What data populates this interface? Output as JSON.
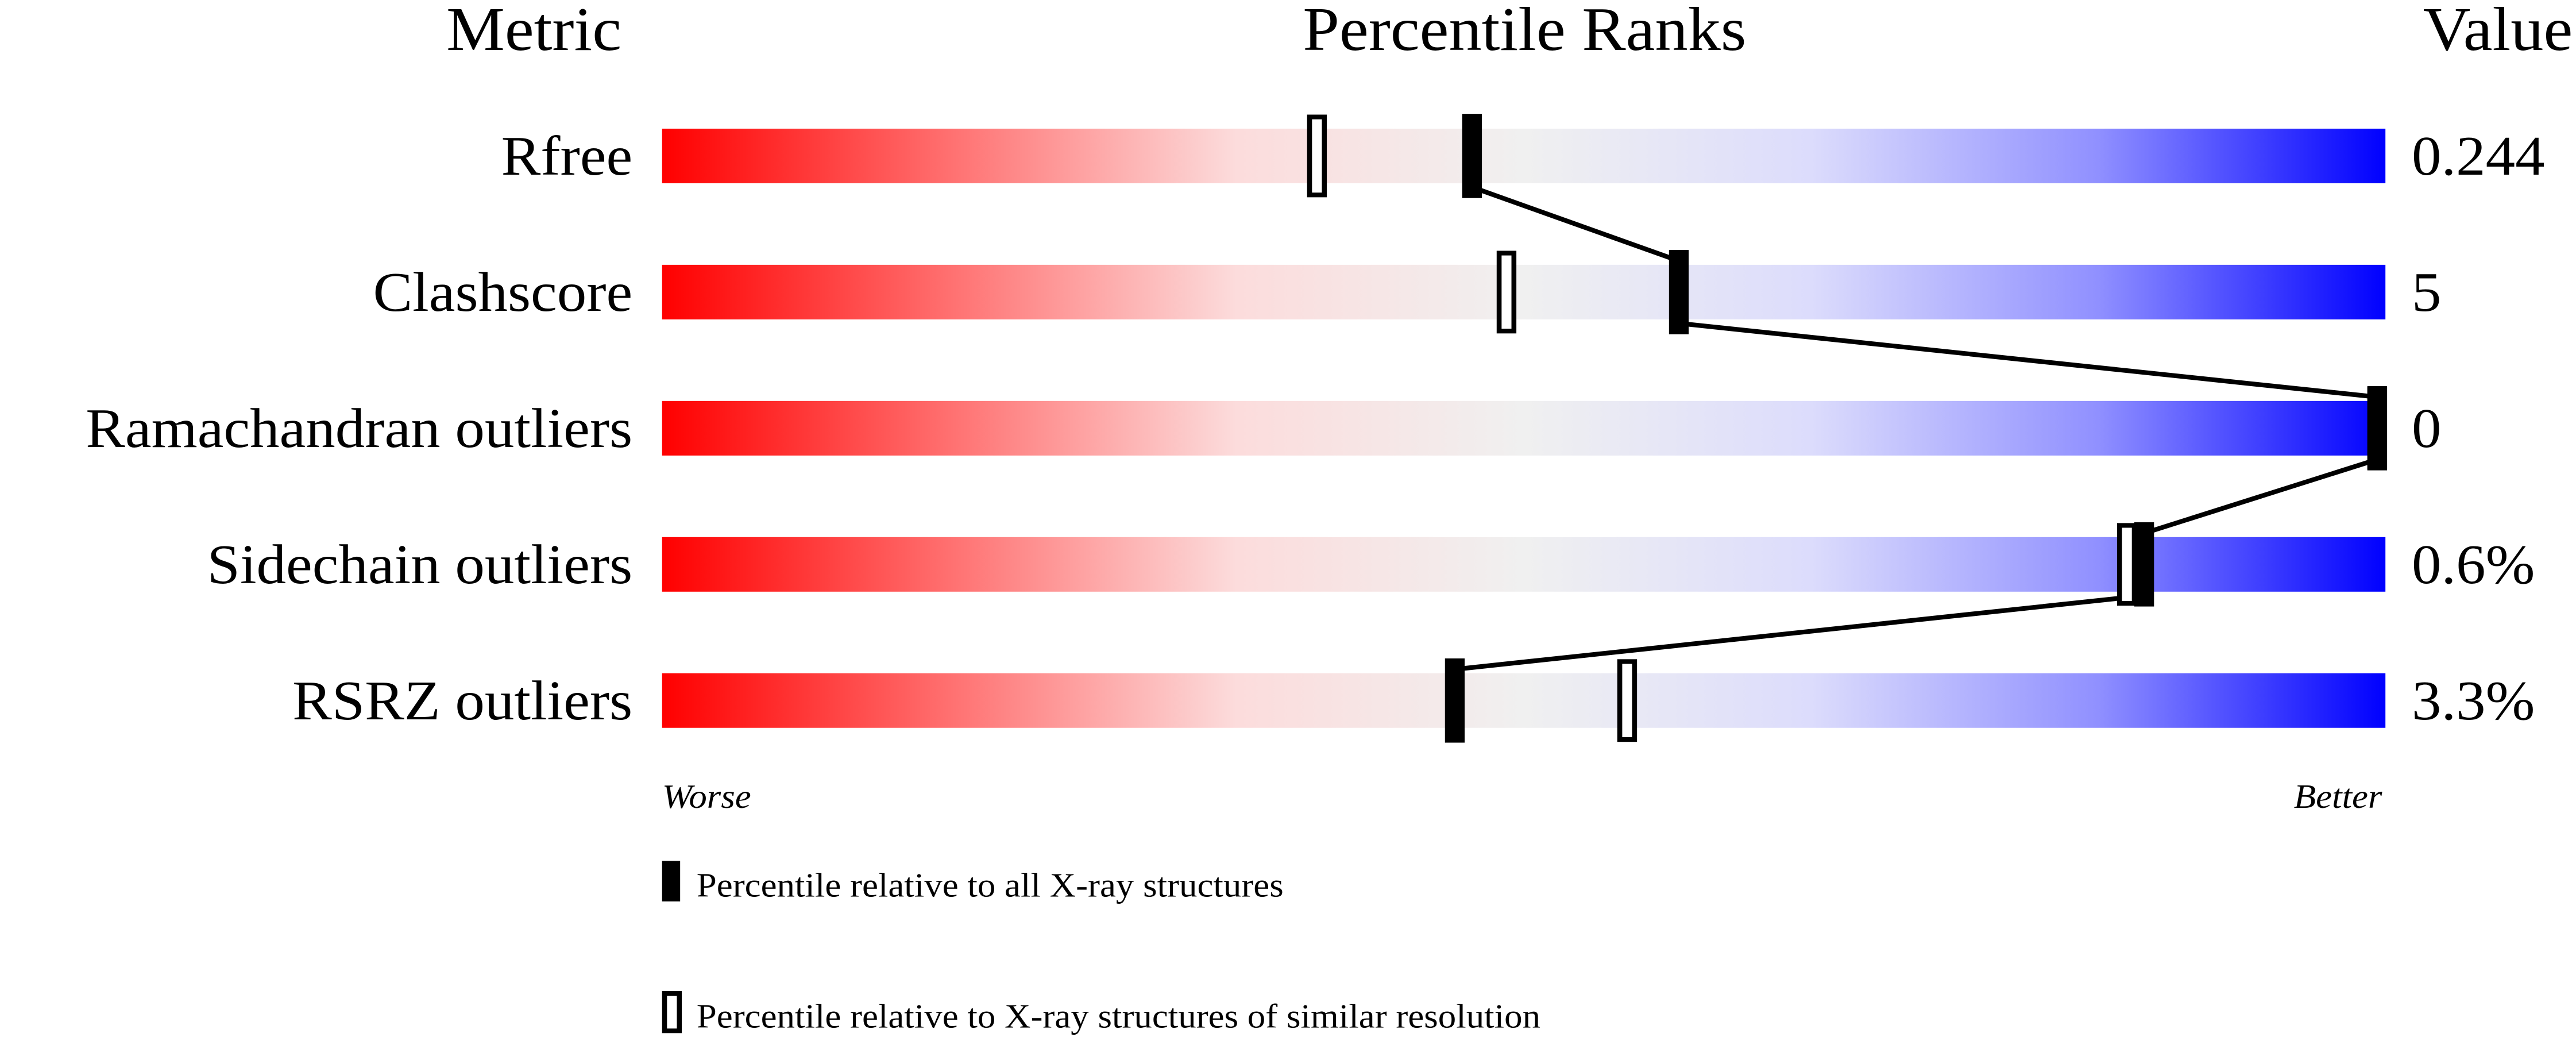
{
  "chart_data": {
    "type": "percentile-bar",
    "headers": {
      "metric": "Metric",
      "ranks": "Percentile Ranks",
      "value": "Value"
    },
    "xlim": [
      0,
      100
    ],
    "axis_labels": {
      "left": "Worse",
      "right": "Better"
    },
    "gradient_colors": [
      "#ff0000",
      "#ff7070",
      "#fcdcdc",
      "#f0f0f0",
      "#dcdcfc",
      "#9090ff",
      "#0000ff"
    ],
    "metrics": [
      {
        "name": "Rfree",
        "value": "0.244",
        "percentile_all": 47,
        "percentile_similar": 38
      },
      {
        "name": "Clashscore",
        "value": "5",
        "percentile_all": 59,
        "percentile_similar": 49
      },
      {
        "name": "Ramachandran outliers",
        "value": "0",
        "percentile_all": 100,
        "percentile_similar": 100
      },
      {
        "name": "Sidechain outliers",
        "value": "0.6%",
        "percentile_all": 86,
        "percentile_similar": 85
      },
      {
        "name": "RSRZ outliers",
        "value": "3.3%",
        "percentile_all": 46,
        "percentile_similar": 56
      }
    ],
    "legend": [
      {
        "marker": "filled",
        "label": "Percentile relative to all X-ray structures"
      },
      {
        "marker": "open",
        "label": "Percentile relative to X-ray structures of similar resolution"
      }
    ]
  }
}
